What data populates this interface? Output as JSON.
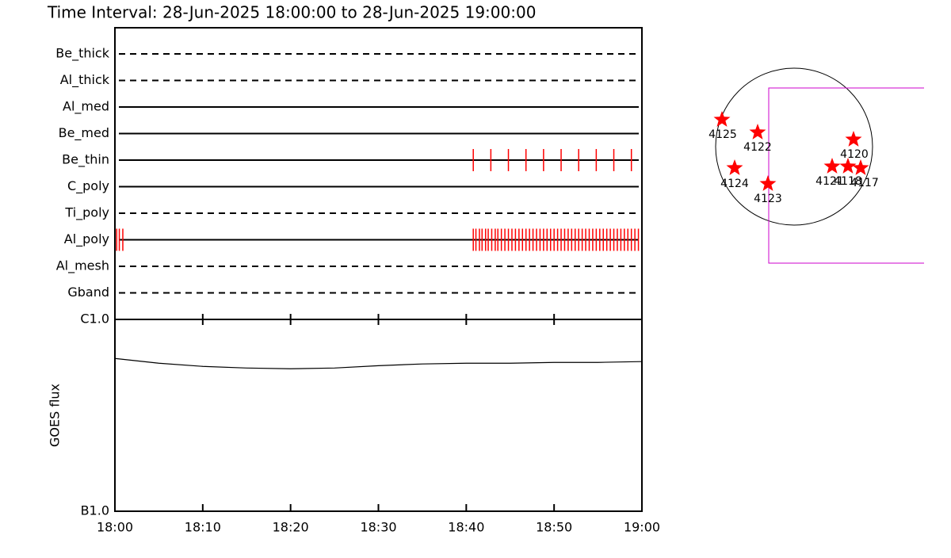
{
  "chart_data": [
    {
      "type": "timeline",
      "title": "Time Interval: 28-Jun-2025 18:00:00 to 28-Jun-2025 19:00:00",
      "xlim": [
        0,
        60
      ],
      "exposure_color": "#ff0000",
      "filters": [
        {
          "name": "Be_thick",
          "dashed": true
        },
        {
          "name": "Al_thick",
          "dashed": true
        },
        {
          "name": "Al_med",
          "dashed": false
        },
        {
          "name": "Be_med",
          "dashed": false
        },
        {
          "name": "Be_thin",
          "dashed": false,
          "exposures": [
            40.8,
            42.8,
            44.8,
            46.8,
            48.8,
            50.8,
            52.8,
            54.8,
            56.8,
            58.8
          ]
        },
        {
          "name": "C_poly",
          "dashed": false
        },
        {
          "name": "Ti_poly",
          "dashed": true
        },
        {
          "name": "Al_poly",
          "dashed": false,
          "exposures": [
            0.2,
            0.5,
            0.9,
            40.8,
            41.1,
            41.5,
            41.8,
            42.2,
            42.5,
            42.9,
            43.3,
            43.6,
            44.0,
            44.4,
            44.8,
            45.2,
            45.6,
            46.0,
            46.4,
            46.8,
            47.2,
            47.6,
            48.0,
            48.4,
            48.8,
            49.2,
            49.6,
            50.0,
            50.4,
            50.8,
            51.2,
            51.6,
            52.0,
            52.4,
            52.8,
            53.2,
            53.6,
            54.0,
            54.4,
            54.8,
            55.2,
            55.6,
            56.0,
            56.4,
            56.8,
            57.2,
            57.6,
            58.0,
            58.4,
            58.8,
            59.2,
            59.6
          ]
        },
        {
          "name": "Al_mesh",
          "dashed": true
        },
        {
          "name": "Gband",
          "dashed": true
        }
      ]
    },
    {
      "type": "line",
      "ylabel": "GOES flux",
      "log_scale": true,
      "xlim": [
        0,
        60
      ],
      "xticks": [
        {
          "value": 0,
          "label": "18:00"
        },
        {
          "value": 10,
          "label": "18:10"
        },
        {
          "value": 20,
          "label": "18:20"
        },
        {
          "value": 30,
          "label": "18:30"
        },
        {
          "value": 40,
          "label": "18:40"
        },
        {
          "value": 50,
          "label": "18:50"
        },
        {
          "value": 60,
          "label": "19:00"
        }
      ],
      "ylim": [
        1e-07,
        1e-06
      ],
      "yticks": [
        {
          "value": 1e-07,
          "label": "B1.0"
        },
        {
          "value": 1e-06,
          "label": "C1.0"
        }
      ],
      "x": [
        0,
        5,
        10,
        15,
        20,
        25,
        30,
        35,
        40,
        45,
        50,
        55,
        60
      ],
      "series": [
        {
          "color": "#000000",
          "values": [
            6.26e-07,
            5.91e-07,
            5.69e-07,
            5.58e-07,
            5.53e-07,
            5.58e-07,
            5.74e-07,
            5.86e-07,
            5.91e-07,
            5.91e-07,
            5.97e-07,
            5.97e-07,
            6.03e-07
          ]
        }
      ]
    }
  ],
  "map": {
    "regions": [
      "4125",
      "4122",
      "4120",
      "4124",
      "4123",
      "4121",
      "4118",
      "4117"
    ]
  }
}
